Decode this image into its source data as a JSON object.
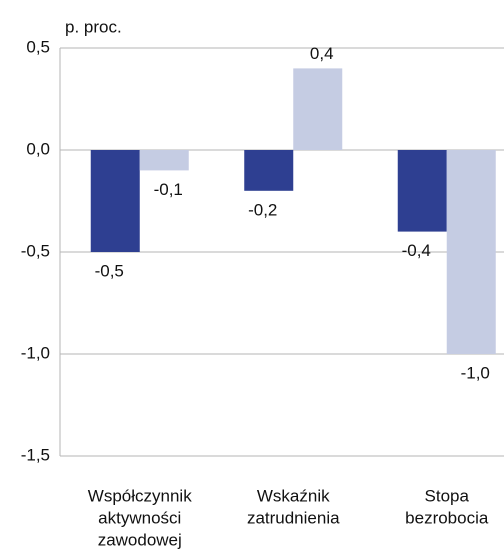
{
  "chart_data": {
    "type": "bar",
    "ylabel": "p. proc.",
    "categories": [
      [
        "Współczynnik",
        "aktywności",
        "zawodowej"
      ],
      [
        "Wskaźnik",
        "zatrudnienia"
      ],
      [
        "Stopa",
        "bezrobocia"
      ]
    ],
    "series": [
      {
        "color": "#2e3f91",
        "values": [
          -0.5,
          -0.2,
          -0.4
        ],
        "value_labels": [
          "-0,5",
          "-0,2",
          "-0,4"
        ]
      },
      {
        "color": "#c5cce3",
        "values": [
          -0.1,
          0.4,
          -1.0
        ],
        "value_labels": [
          "-0,1",
          "0,4",
          "-1,0"
        ]
      }
    ],
    "ylim": [
      -1.5,
      0.5
    ],
    "yticks": [
      {
        "value": 0.5,
        "label": "0,5"
      },
      {
        "value": 0.0,
        "label": "0,0"
      },
      {
        "value": -0.5,
        "label": "-0,5"
      },
      {
        "value": -1.0,
        "label": "-1,0"
      },
      {
        "value": -1.5,
        "label": "-1,5"
      }
    ],
    "grid": true
  }
}
